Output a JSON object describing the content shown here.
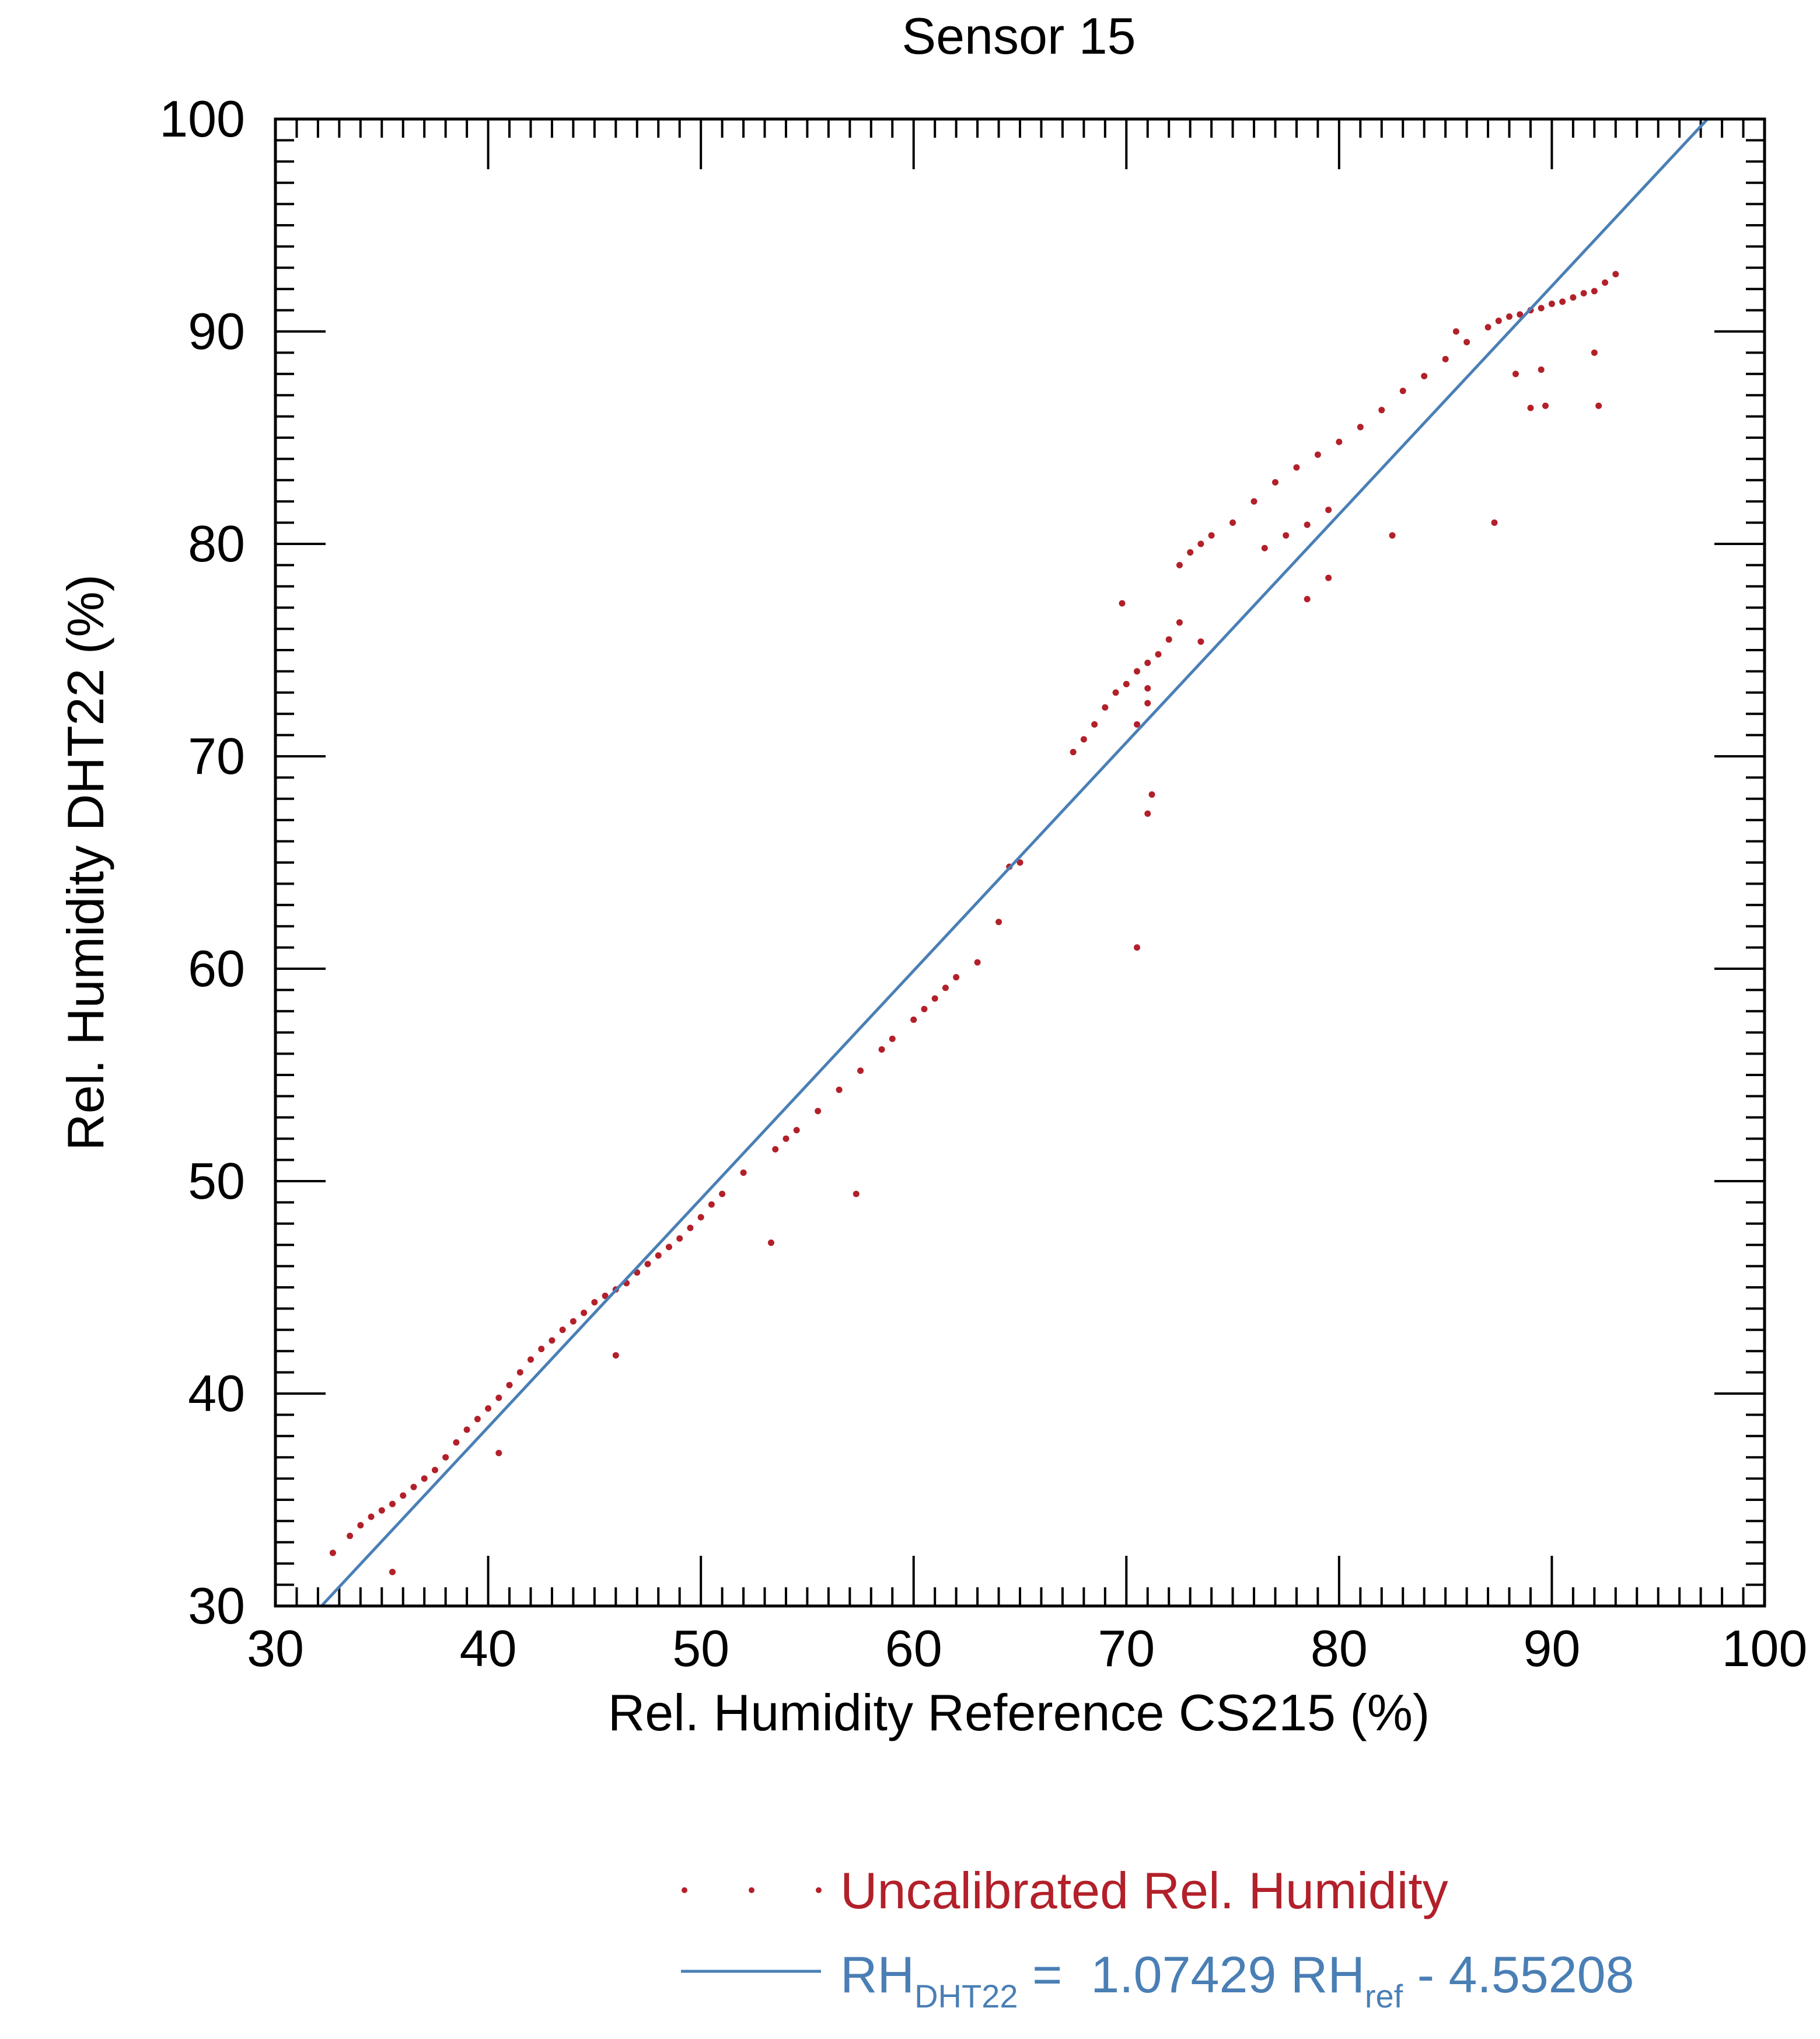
{
  "chart_data": {
    "type": "scatter",
    "title": "Sensor 15",
    "xlabel": "Rel. Humidity Reference CS215 (%)",
    "ylabel": "Rel. Humidity DHT22 (%)",
    "xlim": [
      30,
      100
    ],
    "ylim": [
      30,
      100
    ],
    "xticks": [
      30,
      40,
      50,
      60,
      70,
      80,
      90,
      100
    ],
    "yticks": [
      30,
      40,
      50,
      60,
      70,
      80,
      90,
      100
    ],
    "xtick_labels": [
      "30",
      "40",
      "50",
      "60",
      "70",
      "80",
      "90",
      "100"
    ],
    "ytick_labels": [
      "30",
      "40",
      "50",
      "60",
      "70",
      "80",
      "90",
      "100"
    ],
    "grid": false,
    "legend_position": "bottom-right, below plot",
    "colors": {
      "points": "#b2202a",
      "fit_line": "#4a7fb5",
      "axes": "#000000"
    },
    "series": [
      {
        "name": "Uncalibrated Rel. Humidity",
        "kind": "points",
        "x": [
          32.7,
          33.5,
          34.0,
          34.5,
          35.0,
          35.5,
          36.0,
          36.5,
          37.0,
          37.5,
          38.0,
          38.5,
          39.0,
          39.5,
          40.0,
          40.5,
          41.0,
          41.5,
          42.0,
          42.5,
          43.0,
          43.5,
          44.0,
          44.5,
          45.0,
          45.5,
          46.0,
          46.5,
          47.0,
          47.5,
          48.0,
          48.5,
          49.0,
          49.5,
          50.0,
          50.5,
          51.0,
          52.0,
          53.5,
          54.0,
          54.5,
          55.5,
          56.5,
          57.5,
          58.5,
          59.0,
          60.0,
          60.5,
          61.0,
          61.5,
          62.0,
          63.0,
          64.0,
          64.5,
          65.0,
          67.5,
          68.0,
          68.5,
          69.0,
          69.5,
          70.0,
          70.5,
          71.0,
          71.5,
          72.0,
          72.5,
          73.0,
          73.5,
          74.0,
          75.0,
          76.0,
          77.0,
          78.0,
          79.0,
          80.0,
          81.0,
          82.0,
          83.0,
          84.0,
          85.0,
          86.0,
          87.0,
          88.0,
          89.0,
          90.0,
          91.0,
          92.0,
          92.5,
          93.0,
          85.5,
          87.5,
          88.5,
          89.5,
          90.5,
          91.5,
          76.5,
          77.5,
          78.5,
          79.5,
          70.5,
          71.0,
          71.0,
          69.8,
          72.5,
          73.5,
          53.3,
          57.3,
          46.0,
          40.5,
          35.5,
          87.3,
          88.3,
          89.0,
          89.7,
          89.5,
          92.0,
          92.2,
          78.5,
          79.5,
          82.5,
          71.0,
          71.2,
          70.5
        ],
        "y": [
          32.5,
          33.3,
          33.8,
          34.2,
          34.5,
          34.8,
          35.2,
          35.6,
          36.0,
          36.4,
          37.0,
          37.7,
          38.3,
          38.8,
          39.3,
          39.8,
          40.4,
          41.0,
          41.6,
          42.1,
          42.5,
          43.0,
          43.4,
          43.8,
          44.3,
          44.6,
          44.9,
          45.2,
          45.7,
          46.1,
          46.5,
          46.9,
          47.3,
          47.8,
          48.3,
          48.9,
          49.4,
          50.4,
          51.5,
          52.0,
          52.4,
          53.3,
          54.3,
          55.2,
          56.2,
          56.7,
          57.6,
          58.1,
          58.6,
          59.1,
          59.6,
          60.3,
          62.2,
          64.8,
          65.0,
          70.2,
          70.8,
          71.5,
          72.3,
          73.0,
          73.4,
          74.0,
          74.4,
          74.8,
          75.5,
          79.0,
          79.6,
          80.0,
          80.4,
          81.0,
          82.0,
          82.9,
          83.6,
          84.2,
          84.8,
          85.5,
          86.3,
          87.2,
          87.9,
          88.7,
          89.5,
          90.2,
          90.7,
          91.0,
          91.3,
          91.6,
          91.9,
          92.3,
          92.7,
          90.0,
          90.5,
          90.8,
          91.1,
          91.4,
          91.8,
          79.8,
          80.4,
          80.9,
          81.6,
          71.5,
          72.5,
          73.2,
          77.2,
          76.3,
          75.4,
          47.1,
          49.4,
          41.8,
          37.2,
          31.6,
          81.0,
          88.0,
          86.4,
          86.5,
          88.2,
          89.0,
          86.5,
          77.4,
          78.4,
          80.4,
          67.3,
          68.2,
          61.0
        ]
      },
      {
        "name_parts": {
          "prefix": "RH",
          "sub1": "DHT22",
          "eq": " =  1.07429 RH",
          "sub2": "ref",
          "suffix": " - 4.55208"
        },
        "kind": "line",
        "slope": 1.07429,
        "intercept": -4.55208,
        "x": [
          32.2,
          97.3
        ],
        "y": [
          30.04,
          99.98
        ]
      }
    ]
  }
}
